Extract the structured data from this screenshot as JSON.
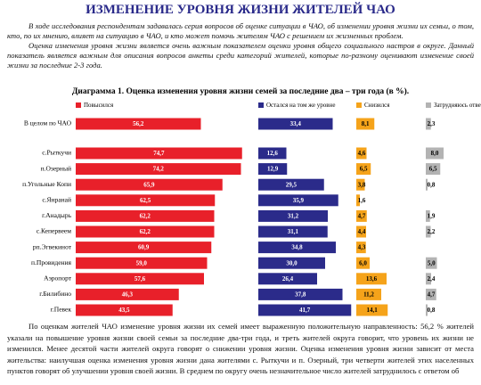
{
  "title": "ИЗМЕНЕНИЕ УРОВНЯ ЖИЗНИ ЖИТЕЛЕЙ ЧАО",
  "paragraphs": [
    "В ходе исследования респондентам задавалась серия вопросов об оценке ситуации в ЧАО, об изменении уровня жизни их семьи, о том, кто, по их мнению, влияет на ситуацию в ЧАО, и кто может помочь жителям ЧАО с решением их жизненных проблем.",
    "Оценка изменения уровня жизни является очень важным показателем оценки уровня общего социального настроя в округе. Данный показатель является важным для описания вопросов анкеты среди категорий жителей, которые по-разному оценивают изменение своей жизни за последние 2-3 года."
  ],
  "chart_data": {
    "type": "bar",
    "title": "Диаграмма 1. Оценка изменения уровня жизни семей за последние два – три года (в %).",
    "categories": [
      "В целом по ЧАО",
      "с.Рыткучи",
      "п.Озерный",
      "п.Угольные Копи",
      "с.Янранай",
      "г.Анадырь",
      "с.Кепервеем",
      "рп.Эгвекинот",
      "п.Провидения",
      "Аэропорт",
      "г.Билибино",
      "г.Певек"
    ],
    "series": [
      {
        "name": "Повысился",
        "color": "#e8202a",
        "values": [
          56.2,
          74.7,
          74.2,
          65.9,
          62.5,
          62.2,
          62.2,
          60.9,
          59.0,
          57.6,
          46.3,
          43.5
        ],
        "value_labels": [
          "56,2",
          "74,7",
          "74,2",
          "65,9",
          "62,5",
          "62,2",
          "62,2",
          "60,9",
          "59,0",
          "57,6",
          "46,3",
          "43,5"
        ]
      },
      {
        "name": "Остался на том же уровне",
        "color": "#2b2b8a",
        "values": [
          33.4,
          12.6,
          12.9,
          29.5,
          35.9,
          31.2,
          31.1,
          34.8,
          30.0,
          26.4,
          37.8,
          41.7
        ],
        "value_labels": [
          "33,4",
          "12,6",
          "12,9",
          "29,5",
          "35,9",
          "31,2",
          "31,1",
          "34,8",
          "30,0",
          "26,4",
          "37,8",
          "41,7"
        ]
      },
      {
        "name": "Снизился",
        "color": "#f5a31a",
        "values": [
          8.1,
          4.6,
          6.5,
          3.8,
          1.6,
          4.7,
          4.4,
          4.3,
          6.0,
          13.6,
          11.2,
          14.1
        ],
        "value_labels": [
          "8,1",
          "4,6",
          "6,5",
          "3,8",
          "1,6",
          "4,7",
          "4,4",
          "4,3",
          "6,0",
          "13,6",
          "11,2",
          "14,1"
        ]
      },
      {
        "name": "Затрудняюсь ответить",
        "color": "#b3b3b3",
        "values": [
          2.3,
          8.0,
          6.5,
          0.8,
          null,
          1.9,
          2.2,
          null,
          5.0,
          2.4,
          4.7,
          0.8
        ],
        "value_labels": [
          "2,3",
          "8,0",
          "6,5",
          "0,8",
          null,
          "1,9",
          "2,2",
          null,
          "5,0",
          "2,4",
          "4,7",
          "0,8"
        ]
      }
    ]
  },
  "bottom_text": "По оценкам жителей ЧАО изменение уровня жизни их семей имеет выраженную положительную направленность: 56,2 % жителей указали на повышение уровня жизни своей семьи за последние два-три года, и треть жителей округа говорит, что уровень их жизни не изменился. Менее десятой части жителей округа говорят о снижении уровня жизни. Оценка изменения уровня жизни зависит от места жительства: наилучшая оценка изменения уровня жизни дана жителями с. Рыткучи и п. Озерный, три четверти жителей этих населенных пунктов говорят об улучшении уровня своей жизни. В среднем по округу очень незначительное число жителей затруднилось с ответом об"
}
